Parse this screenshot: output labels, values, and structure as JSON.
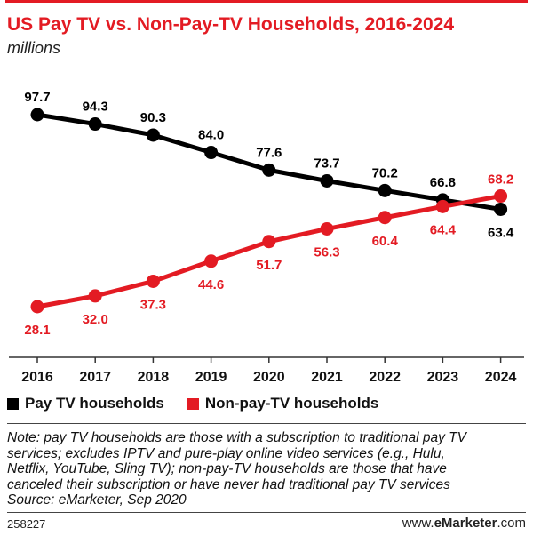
{
  "header": {
    "title": "US Pay TV vs. Non-Pay-TV Households, 2016-2024",
    "subtitle": "millions"
  },
  "colors": {
    "pay_tv": "#000000",
    "non_pay_tv": "#e31b23",
    "title": "#e31b23"
  },
  "chart_data": {
    "type": "line",
    "x": [
      "2016",
      "2017",
      "2018",
      "2019",
      "2020",
      "2021",
      "2022",
      "2023",
      "2024"
    ],
    "series": [
      {
        "name": "Pay TV households",
        "values": [
          97.7,
          94.3,
          90.3,
          84.0,
          77.6,
          73.7,
          70.2,
          66.8,
          63.4
        ],
        "labels": [
          "97.7",
          "94.3",
          "90.3",
          "84.0",
          "77.6",
          "73.7",
          "70.2",
          "66.8",
          "63.4"
        ]
      },
      {
        "name": "Non-pay-TV households",
        "values": [
          28.1,
          32.0,
          37.3,
          44.6,
          51.7,
          56.3,
          60.4,
          64.4,
          68.2
        ],
        "labels": [
          "28.1",
          "32.0",
          "37.3",
          "44.6",
          "51.7",
          "56.3",
          "60.4",
          "64.4",
          "68.2"
        ]
      }
    ],
    "title": "US Pay TV vs. Non-Pay-TV Households, 2016-2024",
    "ylabel": "millions",
    "grid": false,
    "legend": "bottom"
  },
  "legend": {
    "pay_tv": "Pay TV households",
    "non_pay_tv": "Non-pay-TV households"
  },
  "note": {
    "line1": "Note: pay TV households are those with a subscription to traditional pay TV",
    "line2": "services; excludes IPTV and pure-play online video services (e.g., Hulu,",
    "line3": "Netflix, YouTube, Sling TV); non-pay-TV households are those that have",
    "line4": "canceled their subscription or have never had traditional pay TV services",
    "source": "Source: eMarketer, Sep 2020"
  },
  "footer": {
    "id": "258227",
    "site_prefix": "www.",
    "site_brand": "eMarketer",
    "site_suffix": ".com"
  }
}
